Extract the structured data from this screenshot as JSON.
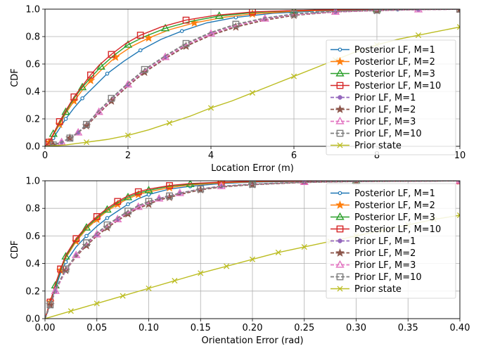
{
  "chart_data": [
    {
      "type": "line",
      "xlabel": "Location Error (m)",
      "ylabel": "CDF",
      "xlim": [
        0,
        10
      ],
      "ylim": [
        0,
        1
      ],
      "xticks": [
        "0",
        "2",
        "4",
        "6",
        "8",
        "10"
      ],
      "yticks": [
        "0.0",
        "0.2",
        "0.4",
        "0.6",
        "0.8",
        "1.0"
      ],
      "grid": true,
      "legend_position": "bottom-right",
      "series": [
        {
          "name": "Posterior LF, M=1",
          "color": "#1f77b4",
          "marker": "circle",
          "dashed": false,
          "x": [
            0,
            0.1,
            0.2,
            0.35,
            0.5,
            0.7,
            0.9,
            1.2,
            1.5,
            1.9,
            2.3,
            2.8,
            3.3,
            3.9,
            4.6,
            5.5,
            6.5,
            7.5,
            8.5,
            10
          ],
          "y": [
            0,
            0.02,
            0.06,
            0.13,
            0.2,
            0.28,
            0.35,
            0.44,
            0.53,
            0.62,
            0.7,
            0.78,
            0.84,
            0.9,
            0.94,
            0.97,
            0.985,
            0.993,
            0.998,
            1
          ]
        },
        {
          "name": "Posterior LF, M=2",
          "color": "#ff7f0e",
          "marker": "star",
          "dashed": false,
          "x": [
            0,
            0.1,
            0.2,
            0.35,
            0.5,
            0.7,
            0.9,
            1.1,
            1.4,
            1.7,
            2.1,
            2.5,
            3.0,
            3.6,
            4.3,
            5.0,
            6.0,
            7.0,
            8.0,
            10
          ],
          "y": [
            0,
            0.03,
            0.08,
            0.16,
            0.24,
            0.33,
            0.41,
            0.48,
            0.57,
            0.65,
            0.73,
            0.79,
            0.85,
            0.9,
            0.94,
            0.965,
            0.985,
            0.993,
            0.998,
            1
          ]
        },
        {
          "name": "Posterior LF, M=3",
          "color": "#2ca02c",
          "marker": "triangle",
          "dashed": false,
          "x": [
            0,
            0.1,
            0.2,
            0.35,
            0.5,
            0.7,
            0.9,
            1.1,
            1.35,
            1.65,
            2.0,
            2.4,
            2.9,
            3.5,
            4.2,
            5.0,
            6.0,
            7.0,
            8.0,
            10
          ],
          "y": [
            0,
            0.03,
            0.09,
            0.17,
            0.25,
            0.35,
            0.43,
            0.5,
            0.58,
            0.66,
            0.74,
            0.8,
            0.86,
            0.91,
            0.95,
            0.975,
            0.99,
            0.996,
            0.999,
            1
          ]
        },
        {
          "name": "Posterior LF, M=10",
          "color": "#d62728",
          "marker": "square",
          "dashed": false,
          "x": [
            0,
            0.1,
            0.2,
            0.35,
            0.5,
            0.7,
            0.9,
            1.1,
            1.3,
            1.6,
            1.95,
            2.3,
            2.8,
            3.4,
            4.1,
            5.0,
            6.0,
            7.0,
            8.0,
            10
          ],
          "y": [
            0,
            0.03,
            0.09,
            0.18,
            0.26,
            0.36,
            0.44,
            0.52,
            0.59,
            0.67,
            0.75,
            0.81,
            0.87,
            0.92,
            0.955,
            0.98,
            0.99,
            0.996,
            0.999,
            1
          ]
        },
        {
          "name": "Prior LF, M=1",
          "color": "#9467bd",
          "marker": "circle",
          "dashed": true,
          "x": [
            0,
            0.2,
            0.4,
            0.6,
            0.8,
            1.0,
            1.3,
            1.6,
            2.0,
            2.4,
            2.9,
            3.4,
            4.0,
            4.6,
            5.3,
            6.0,
            7.0,
            8.0,
            9.0,
            10
          ],
          "y": [
            0,
            0.01,
            0.03,
            0.06,
            0.1,
            0.16,
            0.25,
            0.34,
            0.45,
            0.55,
            0.65,
            0.74,
            0.82,
            0.88,
            0.93,
            0.96,
            0.98,
            0.99,
            0.997,
            1
          ]
        },
        {
          "name": "Prior LF, M=2",
          "color": "#8c564b",
          "marker": "star",
          "dashed": true,
          "x": [
            0,
            0.2,
            0.4,
            0.6,
            0.8,
            1.0,
            1.3,
            1.6,
            2.0,
            2.4,
            2.9,
            3.4,
            4.0,
            4.6,
            5.3,
            6.0,
            7.0,
            8.0,
            9.0,
            10
          ],
          "y": [
            0,
            0.01,
            0.03,
            0.06,
            0.1,
            0.15,
            0.24,
            0.33,
            0.44,
            0.54,
            0.64,
            0.73,
            0.81,
            0.87,
            0.92,
            0.955,
            0.98,
            0.99,
            0.997,
            1
          ]
        },
        {
          "name": "Prior LF, M=3",
          "color": "#e377c2",
          "marker": "triangle",
          "dashed": true,
          "x": [
            0,
            0.2,
            0.4,
            0.6,
            0.8,
            1.0,
            1.3,
            1.6,
            2.0,
            2.4,
            2.9,
            3.4,
            4.0,
            4.6,
            5.3,
            6.0,
            7.0,
            8.0,
            9.0,
            10
          ],
          "y": [
            0,
            0.01,
            0.03,
            0.06,
            0.1,
            0.16,
            0.25,
            0.34,
            0.45,
            0.55,
            0.65,
            0.74,
            0.82,
            0.88,
            0.93,
            0.96,
            0.98,
            0.99,
            0.997,
            1
          ]
        },
        {
          "name": "Prior LF, M=10",
          "color": "#7f7f7f",
          "marker": "square",
          "dashed": true,
          "x": [
            0,
            0.2,
            0.4,
            0.6,
            0.8,
            1.0,
            1.3,
            1.6,
            2.0,
            2.4,
            2.9,
            3.4,
            4.0,
            4.6,
            5.3,
            6.0,
            7.0,
            8.0,
            9.0,
            10
          ],
          "y": [
            0,
            0.01,
            0.03,
            0.06,
            0.1,
            0.16,
            0.26,
            0.35,
            0.46,
            0.56,
            0.66,
            0.75,
            0.83,
            0.89,
            0.935,
            0.965,
            0.985,
            0.993,
            0.998,
            1
          ]
        },
        {
          "name": "Prior state",
          "color": "#bcbd22",
          "marker": "x",
          "dashed": false,
          "x": [
            0,
            0.5,
            1.0,
            1.5,
            2.0,
            2.5,
            3.0,
            3.5,
            4.0,
            4.5,
            5.0,
            5.5,
            6.0,
            6.5,
            7.0,
            7.5,
            8.0,
            8.5,
            9.0,
            9.5,
            10
          ],
          "y": [
            0,
            0.01,
            0.03,
            0.05,
            0.08,
            0.12,
            0.17,
            0.22,
            0.28,
            0.33,
            0.39,
            0.45,
            0.51,
            0.57,
            0.63,
            0.69,
            0.74,
            0.78,
            0.81,
            0.84,
            0.87
          ]
        }
      ]
    },
    {
      "type": "line",
      "xlabel": "Orientation Error (rad)",
      "ylabel": "CDF",
      "xlim": [
        0,
        0.4
      ],
      "ylim": [
        0,
        1
      ],
      "xticks": [
        "0.00",
        "0.05",
        "0.10",
        "0.15",
        "0.20",
        "0.25",
        "0.30",
        "0.35",
        "0.40"
      ],
      "yticks": [
        "0.0",
        "0.2",
        "0.4",
        "0.6",
        "0.8",
        "1.0"
      ],
      "grid": true,
      "legend_position": "bottom-right",
      "series": [
        {
          "name": "Posterior LF, M=1",
          "color": "#1f77b4",
          "marker": "circle",
          "dashed": false,
          "x": [
            0,
            0.005,
            0.01,
            0.015,
            0.02,
            0.03,
            0.04,
            0.05,
            0.06,
            0.07,
            0.08,
            0.09,
            0.1,
            0.12,
            0.14,
            0.17,
            0.2,
            0.25,
            0.3,
            0.4
          ],
          "y": [
            0,
            0.11,
            0.22,
            0.33,
            0.41,
            0.52,
            0.6,
            0.67,
            0.73,
            0.78,
            0.83,
            0.87,
            0.9,
            0.94,
            0.96,
            0.98,
            0.99,
            0.996,
            0.999,
            1
          ]
        },
        {
          "name": "Posterior LF, M=2",
          "color": "#ff7f0e",
          "marker": "star",
          "dashed": false,
          "x": [
            0,
            0.005,
            0.01,
            0.015,
            0.02,
            0.03,
            0.04,
            0.05,
            0.06,
            0.07,
            0.08,
            0.09,
            0.1,
            0.12,
            0.14,
            0.17,
            0.2,
            0.25,
            0.3,
            0.4
          ],
          "y": [
            0,
            0.12,
            0.24,
            0.35,
            0.44,
            0.56,
            0.65,
            0.72,
            0.78,
            0.83,
            0.87,
            0.9,
            0.92,
            0.95,
            0.97,
            0.985,
            0.993,
            0.998,
            0.999,
            1
          ]
        },
        {
          "name": "Posterior LF, M=3",
          "color": "#2ca02c",
          "marker": "triangle",
          "dashed": false,
          "x": [
            0,
            0.005,
            0.01,
            0.015,
            0.02,
            0.03,
            0.04,
            0.05,
            0.06,
            0.07,
            0.08,
            0.09,
            0.1,
            0.12,
            0.14,
            0.17,
            0.2,
            0.25,
            0.3,
            0.4
          ],
          "y": [
            0,
            0.12,
            0.24,
            0.35,
            0.45,
            0.57,
            0.66,
            0.73,
            0.79,
            0.84,
            0.88,
            0.91,
            0.93,
            0.96,
            0.975,
            0.99,
            0.995,
            0.999,
            1,
            1
          ]
        },
        {
          "name": "Posterior LF, M=10",
          "color": "#d62728",
          "marker": "square",
          "dashed": false,
          "x": [
            0,
            0.005,
            0.01,
            0.015,
            0.02,
            0.03,
            0.04,
            0.05,
            0.06,
            0.07,
            0.08,
            0.09,
            0.1,
            0.12,
            0.14,
            0.17,
            0.2,
            0.25,
            0.3,
            0.4
          ],
          "y": [
            0,
            0.12,
            0.25,
            0.36,
            0.46,
            0.58,
            0.67,
            0.74,
            0.8,
            0.85,
            0.89,
            0.92,
            0.94,
            0.965,
            0.98,
            0.99,
            0.996,
            0.999,
            1,
            1
          ]
        },
        {
          "name": "Prior LF, M=1",
          "color": "#9467bd",
          "marker": "circle",
          "dashed": true,
          "x": [
            0,
            0.005,
            0.01,
            0.02,
            0.03,
            0.04,
            0.05,
            0.06,
            0.07,
            0.08,
            0.09,
            0.1,
            0.11,
            0.12,
            0.13,
            0.15,
            0.17,
            0.2,
            0.25,
            0.3,
            0.4
          ],
          "y": [
            0,
            0.1,
            0.2,
            0.35,
            0.46,
            0.54,
            0.61,
            0.67,
            0.72,
            0.77,
            0.81,
            0.84,
            0.87,
            0.89,
            0.91,
            0.94,
            0.96,
            0.975,
            0.99,
            0.996,
            1
          ]
        },
        {
          "name": "Prior LF, M=2",
          "color": "#8c564b",
          "marker": "star",
          "dashed": true,
          "x": [
            0,
            0.005,
            0.01,
            0.02,
            0.03,
            0.04,
            0.05,
            0.06,
            0.07,
            0.08,
            0.09,
            0.1,
            0.11,
            0.12,
            0.13,
            0.15,
            0.17,
            0.2,
            0.25,
            0.3,
            0.4
          ],
          "y": [
            0,
            0.1,
            0.2,
            0.35,
            0.45,
            0.53,
            0.6,
            0.66,
            0.71,
            0.76,
            0.8,
            0.83,
            0.86,
            0.88,
            0.9,
            0.935,
            0.955,
            0.972,
            0.988,
            0.995,
            1
          ]
        },
        {
          "name": "Prior LF, M=3",
          "color": "#e377c2",
          "marker": "triangle",
          "dashed": true,
          "x": [
            0,
            0.005,
            0.01,
            0.02,
            0.03,
            0.04,
            0.05,
            0.06,
            0.07,
            0.08,
            0.09,
            0.1,
            0.11,
            0.12,
            0.13,
            0.15,
            0.17,
            0.2,
            0.25,
            0.3,
            0.4
          ],
          "y": [
            0,
            0.1,
            0.2,
            0.35,
            0.46,
            0.54,
            0.61,
            0.67,
            0.72,
            0.77,
            0.81,
            0.84,
            0.87,
            0.89,
            0.91,
            0.94,
            0.96,
            0.975,
            0.99,
            0.996,
            1
          ]
        },
        {
          "name": "Prior LF, M=10",
          "color": "#7f7f7f",
          "marker": "square",
          "dashed": true,
          "x": [
            0,
            0.005,
            0.01,
            0.02,
            0.03,
            0.04,
            0.05,
            0.06,
            0.07,
            0.08,
            0.09,
            0.1,
            0.11,
            0.12,
            0.13,
            0.15,
            0.17,
            0.2,
            0.25,
            0.3,
            0.4
          ],
          "y": [
            0,
            0.1,
            0.21,
            0.36,
            0.46,
            0.55,
            0.62,
            0.68,
            0.73,
            0.78,
            0.82,
            0.85,
            0.87,
            0.89,
            0.91,
            0.94,
            0.96,
            0.975,
            0.99,
            0.996,
            1
          ]
        },
        {
          "name": "Prior state",
          "color": "#bcbd22",
          "marker": "x",
          "dashed": false,
          "x": [
            0,
            0.025,
            0.05,
            0.075,
            0.1,
            0.125,
            0.15,
            0.175,
            0.2,
            0.225,
            0.25,
            0.275,
            0.3,
            0.325,
            0.35,
            0.375,
            0.4
          ],
          "y": [
            0,
            0.055,
            0.11,
            0.165,
            0.22,
            0.275,
            0.33,
            0.38,
            0.43,
            0.48,
            0.52,
            0.56,
            0.6,
            0.64,
            0.68,
            0.72,
            0.75
          ]
        }
      ]
    }
  ]
}
